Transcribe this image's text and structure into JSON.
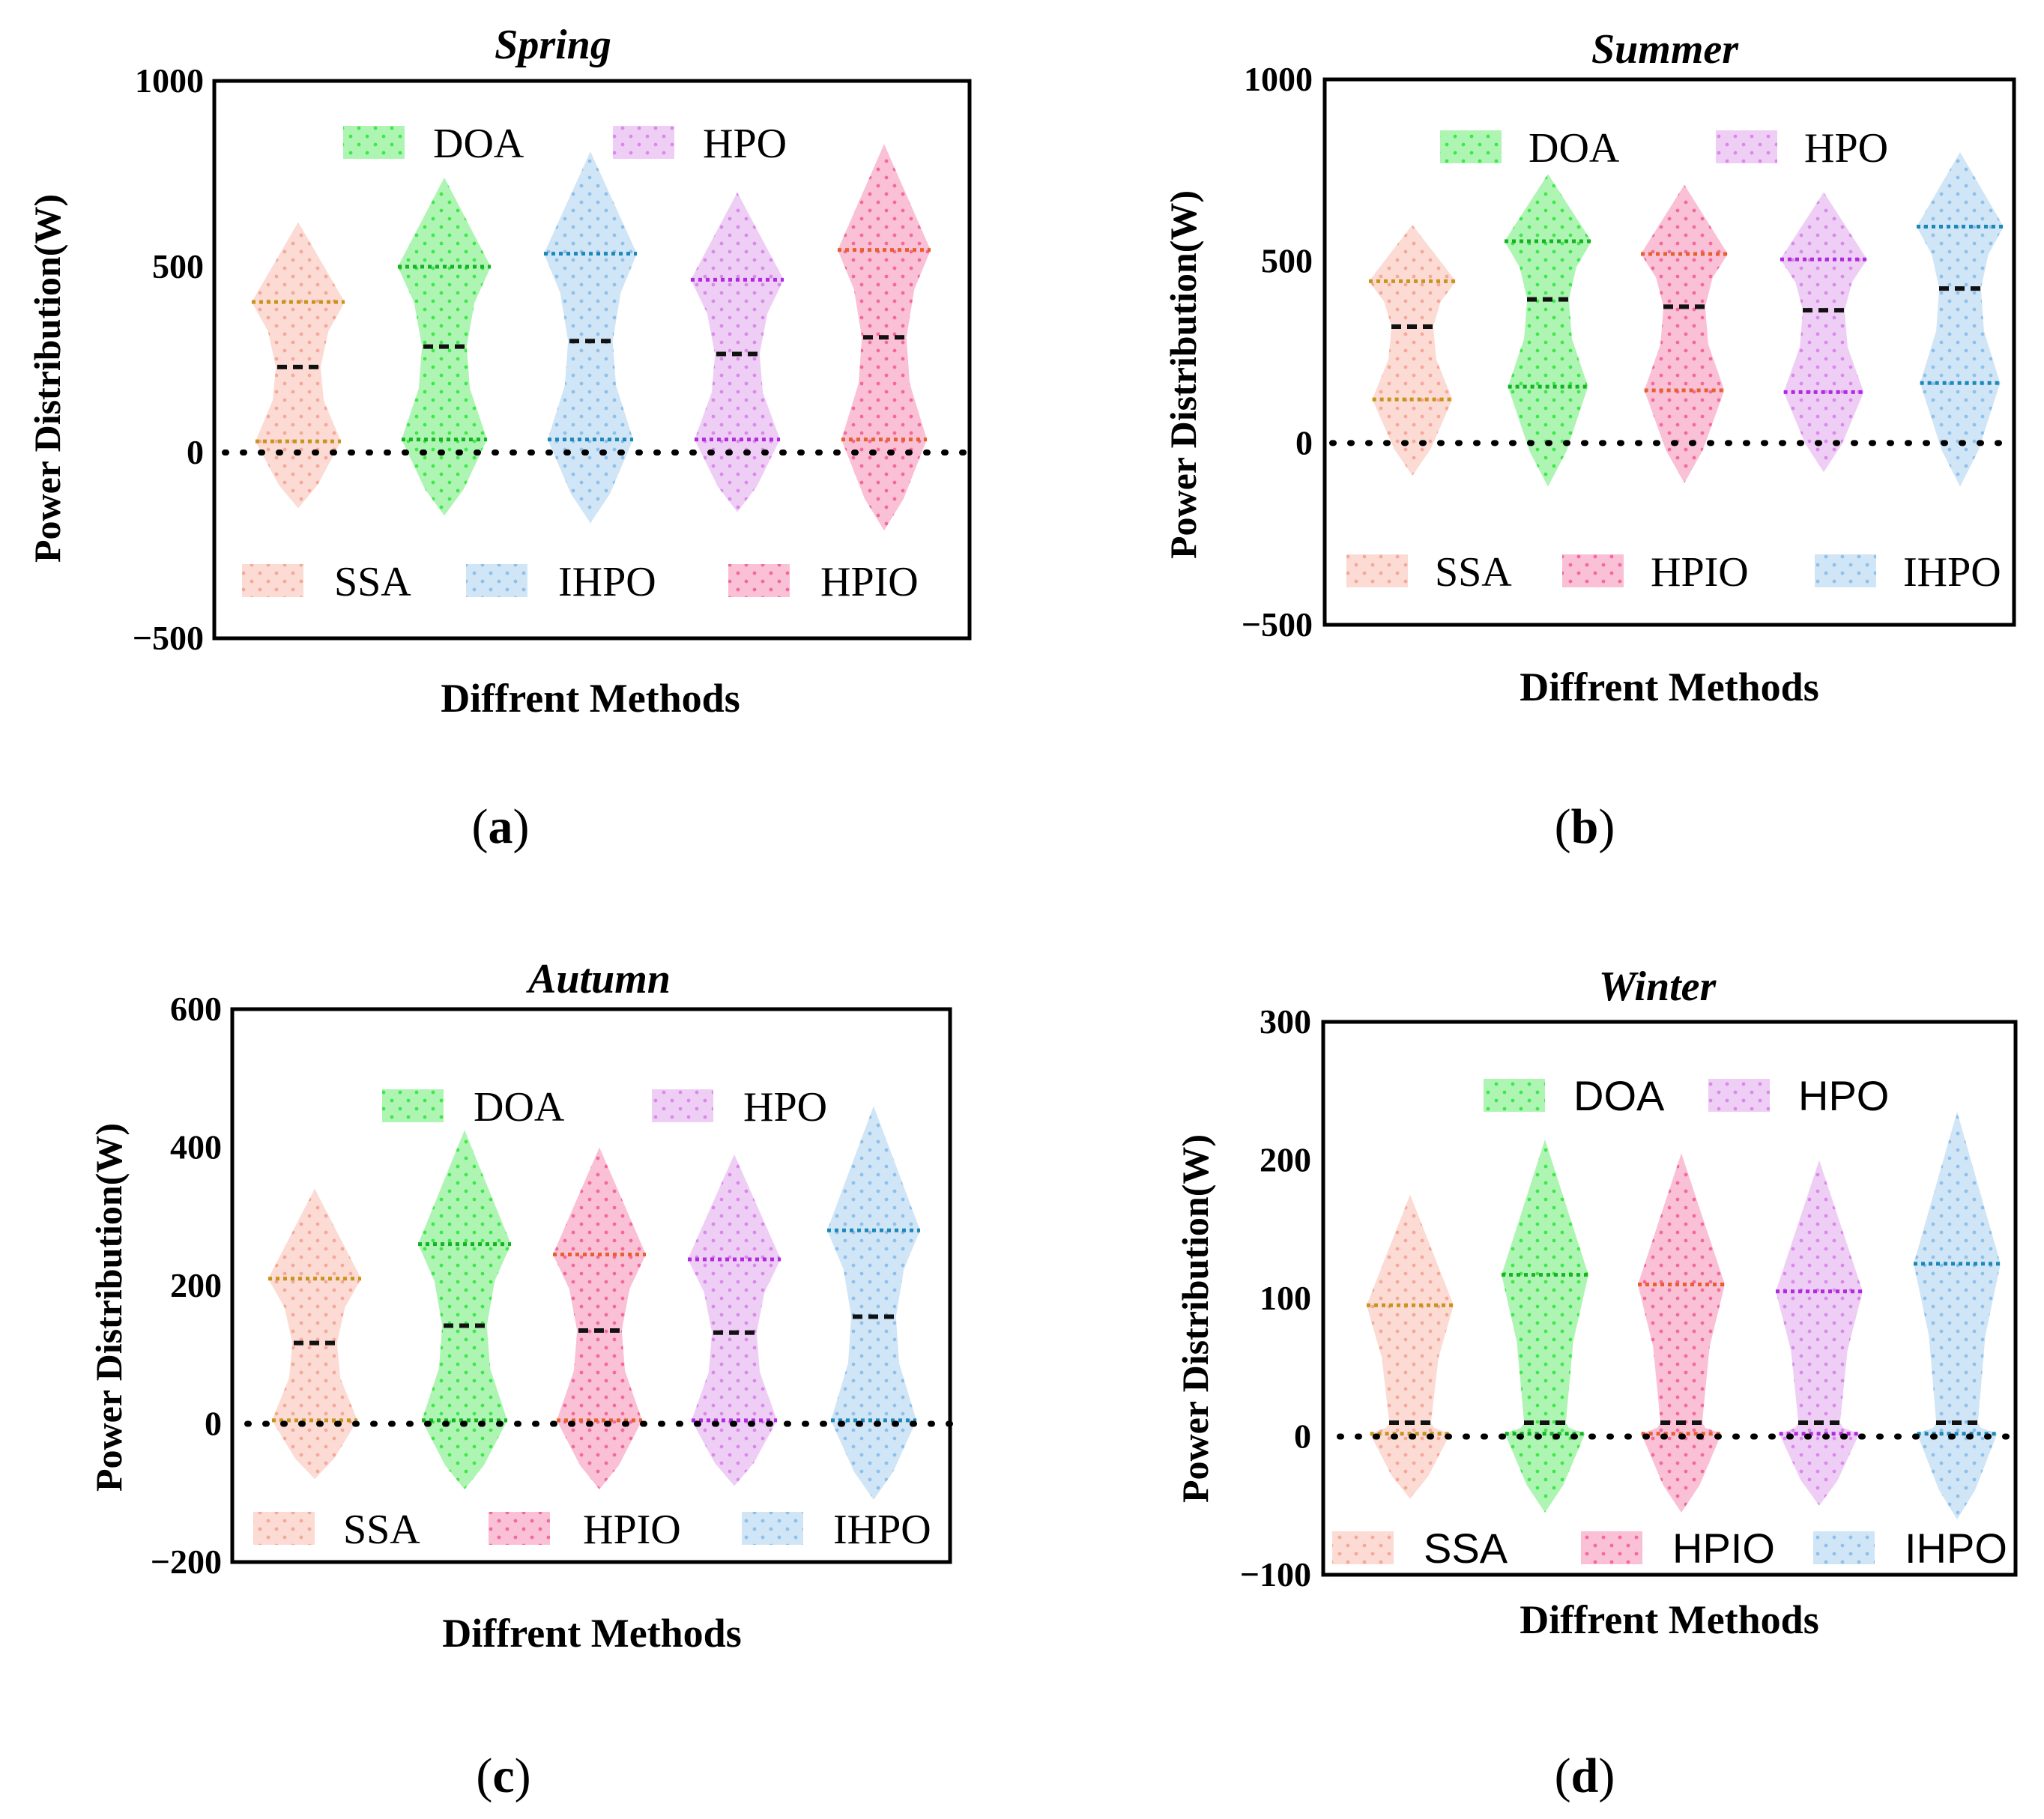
{
  "figure": {
    "colors": {
      "SSA": "#f5a898",
      "DOA": "#3ee84a",
      "IHPO": "#8ec0ea",
      "HPO": "#d88ae8",
      "HPIO": "#f4689a"
    },
    "stripe_colors": {
      "SSA": "#c8941a",
      "DOA": "#15b224",
      "IHPO": "#1c88b8",
      "HPO": "#b02ae0",
      "HPIO": "#e6602e"
    }
  },
  "chart_data": [
    {
      "type": "violin",
      "panel": "a",
      "caption": "a",
      "title": "Spring",
      "xlabel": "Diffrent Methods",
      "ylabel": "Power Distribution(W)",
      "ylim": [
        -500,
        1000
      ],
      "yticks": [
        1000,
        500,
        0,
        -500
      ],
      "ytick_labels": [
        "1000",
        "500",
        "0",
        "−500"
      ],
      "legend_top": [
        "DOA",
        "HPO"
      ],
      "legend_bottom": [
        "SSA",
        "IHPO",
        "HPIO"
      ],
      "series": [
        {
          "name": "SSA",
          "min": -150,
          "max": 620,
          "q1": 30,
          "median": 230,
          "q3": 405
        },
        {
          "name": "DOA",
          "min": -170,
          "max": 740,
          "q1": 35,
          "median": 285,
          "q3": 500
        },
        {
          "name": "IHPO",
          "min": -190,
          "max": 810,
          "q1": 35,
          "median": 300,
          "q3": 535
        },
        {
          "name": "HPO",
          "min": -160,
          "max": 700,
          "q1": 35,
          "median": 265,
          "q3": 465
        },
        {
          "name": "HPIO",
          "min": -210,
          "max": 830,
          "q1": 35,
          "median": 310,
          "q3": 545
        }
      ]
    },
    {
      "type": "violin",
      "panel": "b",
      "caption": "b",
      "title": "Summer",
      "xlabel": "Diffrent Methods",
      "ylabel": "Power Distribution(W)",
      "ylim": [
        -500,
        1000
      ],
      "yticks": [
        1000,
        500,
        0,
        -500
      ],
      "ytick_labels": [
        "1000",
        "500",
        "0",
        "−500"
      ],
      "legend_top": [
        "DOA",
        "HPO"
      ],
      "legend_bottom": [
        "SSA",
        "HPIO",
        "IHPO"
      ],
      "series": [
        {
          "name": "SSA",
          "min": -90,
          "max": 600,
          "q1": 120,
          "median": 320,
          "q3": 445
        },
        {
          "name": "DOA",
          "min": -120,
          "max": 740,
          "q1": 155,
          "median": 395,
          "q3": 555
        },
        {
          "name": "HPIO",
          "min": -110,
          "max": 710,
          "q1": 145,
          "median": 375,
          "q3": 520
        },
        {
          "name": "HPO",
          "min": -80,
          "max": 690,
          "q1": 140,
          "median": 365,
          "q3": 505
        },
        {
          "name": "IHPO",
          "min": -120,
          "max": 800,
          "q1": 165,
          "median": 425,
          "q3": 595
        }
      ]
    },
    {
      "type": "violin",
      "panel": "c",
      "caption": "c",
      "title": "Autumn",
      "xlabel": "Diffrent Methods",
      "ylabel": "Power Distribution(W)",
      "ylim": [
        -200,
        600
      ],
      "yticks": [
        600,
        400,
        200,
        0,
        -200
      ],
      "ytick_labels": [
        "600",
        "400",
        "200",
        "0",
        "−200"
      ],
      "legend_top": [
        "DOA",
        "HPO"
      ],
      "legend_bottom": [
        "SSA",
        "HPIO",
        "IHPO"
      ],
      "series": [
        {
          "name": "SSA",
          "min": -80,
          "max": 340,
          "q1": 5,
          "median": 117,
          "q3": 210
        },
        {
          "name": "DOA",
          "min": -95,
          "max": 425,
          "q1": 5,
          "median": 142,
          "q3": 260
        },
        {
          "name": "HPIO",
          "min": -95,
          "max": 400,
          "q1": 5,
          "median": 135,
          "q3": 245
        },
        {
          "name": "HPO",
          "min": -90,
          "max": 390,
          "q1": 5,
          "median": 132,
          "q3": 238
        },
        {
          "name": "IHPO",
          "min": -110,
          "max": 460,
          "q1": 5,
          "median": 155,
          "q3": 280
        }
      ]
    },
    {
      "type": "violin",
      "panel": "d",
      "caption": "d",
      "title": "Winter",
      "xlabel": "Diffrent Methods",
      "ylabel": "Power Distribution(W)",
      "ylim": [
        -100,
        300
      ],
      "yticks": [
        300,
        200,
        100,
        0,
        -100
      ],
      "ytick_labels": [
        "300",
        "200",
        "100",
        "0",
        "−100"
      ],
      "legend_top": [
        "DOA",
        "HPO"
      ],
      "legend_bottom": [
        "SSA",
        "HPIO",
        "IHPO"
      ],
      "series": [
        {
          "name": "SSA",
          "min": -45,
          "max": 175,
          "q1": 2,
          "median": 10,
          "q3": 95
        },
        {
          "name": "DOA",
          "min": -55,
          "max": 215,
          "q1": 2,
          "median": 10,
          "q3": 117
        },
        {
          "name": "HPIO",
          "min": -55,
          "max": 205,
          "q1": 2,
          "median": 10,
          "q3": 110
        },
        {
          "name": "HPO",
          "min": -50,
          "max": 200,
          "q1": 2,
          "median": 10,
          "q3": 105
        },
        {
          "name": "IHPO",
          "min": -60,
          "max": 235,
          "q1": 2,
          "median": 10,
          "q3": 125
        }
      ]
    }
  ]
}
